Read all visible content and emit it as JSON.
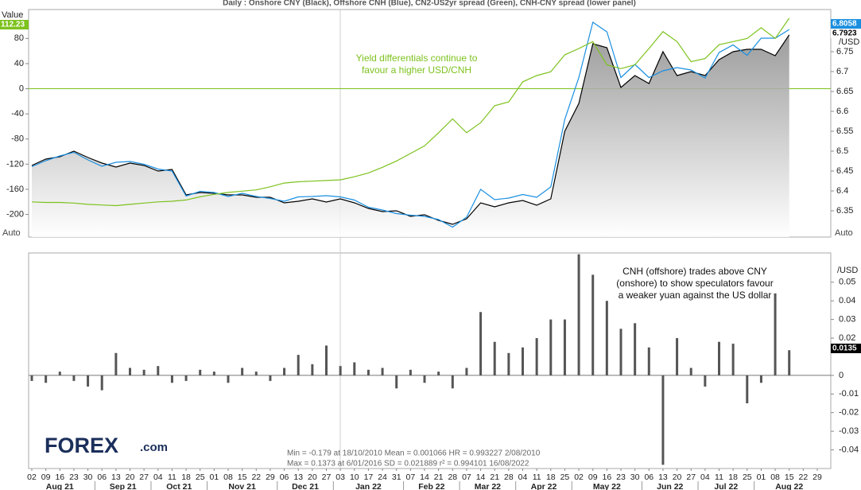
{
  "chart_data": [
    {
      "type": "line",
      "title": "Daily : Onshore CNY (Black), Offshore CNH (Blue), CN2-US2yr spread (Green), CNH-CNY spread (lower panel)",
      "y_label": "Value",
      "y2_unit": "/USD",
      "scale_mode": "Auto",
      "ylim": [
        -236,
        126
      ],
      "yticks": [
        80,
        40,
        0,
        -40,
        -80,
        -120,
        -160,
        -200
      ],
      "y2lim": [
        6.284,
        6.856
      ],
      "y2ticks": [
        6.75,
        6.7,
        6.65,
        6.6,
        6.55,
        6.5,
        6.45,
        6.4,
        6.35
      ],
      "zero_line_color": "#7dc21e",
      "area_fill": true,
      "annotation": {
        "lines": [
          "Yield differentials continue to",
          "favour a higher USD/CNH"
        ],
        "color": "#7dc21e"
      },
      "series": [
        {
          "name": "Onshore CNY",
          "color": "#000000",
          "axis": "y2",
          "values": [
            6.464,
            6.48,
            6.486,
            6.5,
            6.484,
            6.47,
            6.46,
            6.47,
            6.464,
            6.45,
            6.454,
            6.39,
            6.396,
            6.394,
            6.39,
            6.39,
            6.384,
            6.384,
            6.37,
            6.374,
            6.38,
            6.372,
            6.38,
            6.37,
            6.356,
            6.348,
            6.35,
            6.336,
            6.34,
            6.326,
            6.316,
            6.33,
            6.37,
            6.36,
            6.37,
            6.376,
            6.364,
            6.38,
            6.55,
            6.62,
            6.77,
            6.76,
            6.66,
            6.69,
            6.67,
            6.75,
            6.69,
            6.7,
            6.69,
            6.73,
            6.75,
            6.756,
            6.756,
            6.74,
            6.7923,
            null,
            null
          ]
        },
        {
          "name": "Offshore CNH",
          "color": "#1a8fe0",
          "axis": "y2",
          "values": [
            6.461,
            6.476,
            6.488,
            6.497,
            6.478,
            6.462,
            6.472,
            6.474,
            6.467,
            6.455,
            6.45,
            6.387,
            6.399,
            6.396,
            6.386,
            6.394,
            6.386,
            6.381,
            6.374,
            6.385,
            6.386,
            6.388,
            6.385,
            6.377,
            6.359,
            6.352,
            6.343,
            6.339,
            6.336,
            6.328,
            6.309,
            6.334,
            6.404,
            6.378,
            6.382,
            6.391,
            6.384,
            6.41,
            6.58,
            6.685,
            6.824,
            6.8,
            6.685,
            6.718,
            6.685,
            6.702,
            6.71,
            6.704,
            6.684,
            6.748,
            6.767,
            6.741,
            6.784,
            6.784,
            6.8058,
            null,
            null
          ]
        },
        {
          "name": "CN2-US2yr spread",
          "color": "#7dc21e",
          "values": [
            -180,
            -181,
            -181,
            -182,
            -184,
            -185,
            -186,
            -184,
            -182,
            -180,
            -179,
            -177,
            -172,
            -168,
            -165,
            -163,
            -161,
            -156,
            -150,
            -148,
            -147,
            -146,
            -145,
            -140,
            -134,
            -125,
            -115,
            -103,
            -91,
            -70,
            -48,
            -70,
            -54,
            -27,
            -21,
            11,
            21,
            27,
            54,
            64,
            75,
            38,
            32,
            38,
            64,
            91,
            75,
            43,
            48,
            70,
            75,
            80,
            97,
            80,
            112.23,
            null,
            null
          ]
        }
      ]
    },
    {
      "type": "bar",
      "name": "CNH-CNY spread",
      "y2_unit": "/USD",
      "color": "#555555",
      "ylim": [
        -0.05,
        0.0657
      ],
      "yticks": [
        0.05,
        0.04,
        0.03,
        0.02,
        0,
        -0.01,
        -0.02,
        -0.03,
        -0.04
      ],
      "annotation": {
        "lines": [
          "CNH (offshore) trades above CNY",
          "(onshore) to show speculators favour",
          "a weaker yuan against the US dollar"
        ]
      },
      "stats": [
        "Min = -0.179 at 18/10/2010 Mean = 0.001066 HR = 0.993227 2/08/2010",
        "Max = 0.1373 at 6/01/2016   SD    = 0.021889 r² = 0.994101 16/08/2022"
      ],
      "categories": [
        "02",
        "09",
        "16",
        "23",
        "30",
        "06",
        "13",
        "20",
        "27",
        "04",
        "11",
        "18",
        "25",
        "01",
        "08",
        "15",
        "22",
        "29",
        "06",
        "13",
        "20",
        "27",
        "03",
        "10",
        "17",
        "24",
        "31",
        "07",
        "14",
        "21",
        "28",
        "07",
        "14",
        "21",
        "28",
        "04",
        "11",
        "18",
        "25",
        "02",
        "09",
        "16",
        "23",
        "30",
        "06",
        "13",
        "20",
        "27",
        "04",
        "11",
        "18",
        "25",
        "01",
        "08",
        "15",
        "22",
        "29"
      ],
      "months": [
        "Aug 21",
        "Sep 21",
        "Oct 21",
        "Nov 21",
        "Dec 21",
        "Jan 22",
        "Feb 22",
        "Mar 22",
        "Apr 22",
        "May 22",
        "Jun 22",
        "Jul 22",
        "Aug 22"
      ],
      "values": [
        -0.003,
        -0.004,
        0.002,
        -0.003,
        -0.006,
        -0.008,
        0.012,
        0.004,
        0.003,
        0.005,
        -0.004,
        -0.003,
        0.003,
        0.002,
        -0.004,
        0.004,
        0.002,
        -0.003,
        0.004,
        0.011,
        0.006,
        0.016,
        0.005,
        0.007,
        0.003,
        0.004,
        -0.007,
        0.003,
        -0.004,
        0.002,
        -0.007,
        0.004,
        0.034,
        0.018,
        0.012,
        0.015,
        0.02,
        0.03,
        0.03,
        0.065,
        0.054,
        0.04,
        0.025,
        0.028,
        0.015,
        -0.048,
        0.02,
        0.004,
        -0.006,
        0.018,
        0.017,
        -0.015,
        -0.004,
        0.044,
        0.0135,
        null,
        null
      ]
    }
  ],
  "logo": {
    "brand": "FOREX",
    "suffix": ".com"
  }
}
